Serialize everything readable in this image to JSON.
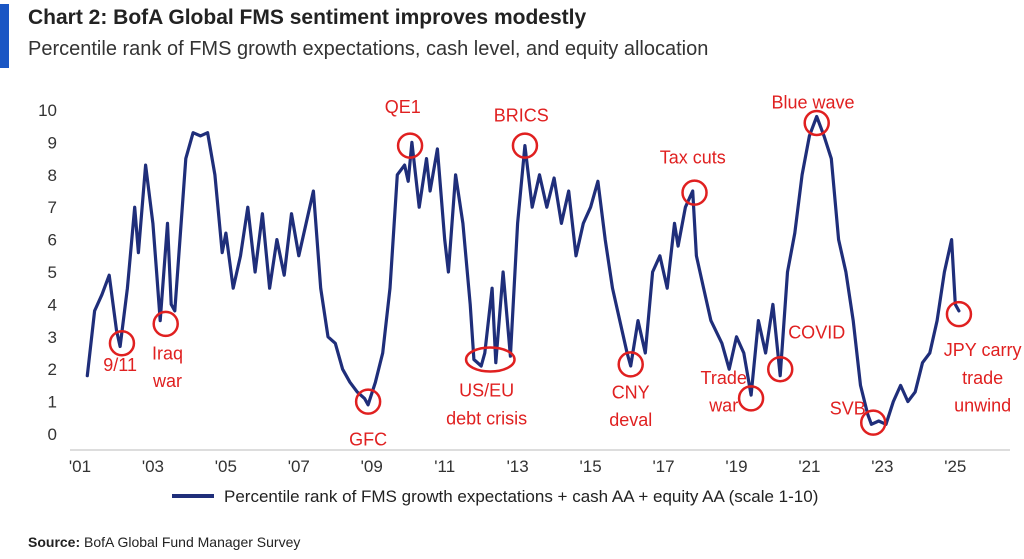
{
  "header": {
    "title": "Chart 2: BofA Global FMS sentiment improves modestly",
    "subtitle": "Percentile rank of FMS growth expectations, cash level, and equity allocation"
  },
  "source": {
    "label": "Source:",
    "text": "BofA Global Fund Manager Survey"
  },
  "colors": {
    "line": "#1f2e7a",
    "annotation": "#e02020",
    "accent": "#1a56c4"
  },
  "chart_data": {
    "type": "line",
    "xlim": [
      2001,
      2026.5
    ],
    "ylim": [
      0,
      10
    ],
    "x_ticks": [
      {
        "value": 2001,
        "label": "'01"
      },
      {
        "value": 2003,
        "label": "'03"
      },
      {
        "value": 2005,
        "label": "'05"
      },
      {
        "value": 2007,
        "label": "'07"
      },
      {
        "value": 2009,
        "label": "'09"
      },
      {
        "value": 2011,
        "label": "'11"
      },
      {
        "value": 2013,
        "label": "'13"
      },
      {
        "value": 2015,
        "label": "'15"
      },
      {
        "value": 2017,
        "label": "'17"
      },
      {
        "value": 2019,
        "label": "'19"
      },
      {
        "value": 2021,
        "label": "'21"
      },
      {
        "value": 2023,
        "label": "'23"
      },
      {
        "value": 2025,
        "label": "'25"
      }
    ],
    "y_ticks": [
      0,
      1,
      2,
      3,
      4,
      5,
      6,
      7,
      8,
      9,
      10
    ],
    "grid": false,
    "legend_position": "bottom",
    "series": [
      {
        "name": "Percentile rank of FMS growth expectations + cash AA + equity AA (scale 1-10)",
        "points": [
          [
            2001.2,
            1.8
          ],
          [
            2001.4,
            3.8
          ],
          [
            2001.6,
            4.3
          ],
          [
            2001.8,
            4.9
          ],
          [
            2002.0,
            3.2
          ],
          [
            2002.1,
            2.7
          ],
          [
            2002.3,
            4.5
          ],
          [
            2002.5,
            7.0
          ],
          [
            2002.6,
            5.6
          ],
          [
            2002.8,
            8.3
          ],
          [
            2003.0,
            6.5
          ],
          [
            2003.1,
            5.0
          ],
          [
            2003.2,
            3.5
          ],
          [
            2003.4,
            6.5
          ],
          [
            2003.5,
            4.0
          ],
          [
            2003.6,
            3.8
          ],
          [
            2003.9,
            8.5
          ],
          [
            2004.1,
            9.3
          ],
          [
            2004.3,
            9.2
          ],
          [
            2004.5,
            9.3
          ],
          [
            2004.7,
            8.0
          ],
          [
            2004.9,
            5.6
          ],
          [
            2005.0,
            6.2
          ],
          [
            2005.2,
            4.5
          ],
          [
            2005.4,
            5.5
          ],
          [
            2005.6,
            7.0
          ],
          [
            2005.8,
            5.0
          ],
          [
            2006.0,
            6.8
          ],
          [
            2006.2,
            4.5
          ],
          [
            2006.4,
            6.0
          ],
          [
            2006.6,
            4.9
          ],
          [
            2006.8,
            6.8
          ],
          [
            2007.0,
            5.5
          ],
          [
            2007.2,
            6.5
          ],
          [
            2007.4,
            7.5
          ],
          [
            2007.6,
            4.5
          ],
          [
            2007.8,
            3.0
          ],
          [
            2008.0,
            2.8
          ],
          [
            2008.2,
            2.0
          ],
          [
            2008.4,
            1.6
          ],
          [
            2008.6,
            1.3
          ],
          [
            2008.8,
            1.1
          ],
          [
            2008.9,
            0.9
          ],
          [
            2009.1,
            1.6
          ],
          [
            2009.3,
            2.5
          ],
          [
            2009.5,
            4.5
          ],
          [
            2009.7,
            8.0
          ],
          [
            2009.9,
            8.3
          ],
          [
            2010.0,
            7.8
          ],
          [
            2010.1,
            9.0
          ],
          [
            2010.3,
            7.0
          ],
          [
            2010.5,
            8.5
          ],
          [
            2010.6,
            7.5
          ],
          [
            2010.8,
            8.8
          ],
          [
            2011.0,
            6.0
          ],
          [
            2011.1,
            5.0
          ],
          [
            2011.3,
            8.0
          ],
          [
            2011.5,
            6.5
          ],
          [
            2011.7,
            4.0
          ],
          [
            2011.8,
            2.3
          ],
          [
            2012.0,
            2.1
          ],
          [
            2012.1,
            2.5
          ],
          [
            2012.3,
            4.5
          ],
          [
            2012.4,
            2.2
          ],
          [
            2012.6,
            5.0
          ],
          [
            2012.8,
            2.4
          ],
          [
            2013.0,
            6.5
          ],
          [
            2013.2,
            8.9
          ],
          [
            2013.4,
            7.0
          ],
          [
            2013.6,
            8.0
          ],
          [
            2013.8,
            7.0
          ],
          [
            2014.0,
            7.9
          ],
          [
            2014.2,
            6.5
          ],
          [
            2014.4,
            7.5
          ],
          [
            2014.6,
            5.5
          ],
          [
            2014.8,
            6.5
          ],
          [
            2015.0,
            7.0
          ],
          [
            2015.2,
            7.8
          ],
          [
            2015.4,
            6.0
          ],
          [
            2015.6,
            4.5
          ],
          [
            2015.8,
            3.5
          ],
          [
            2016.0,
            2.5
          ],
          [
            2016.1,
            2.1
          ],
          [
            2016.3,
            3.5
          ],
          [
            2016.5,
            2.5
          ],
          [
            2016.7,
            5.0
          ],
          [
            2016.9,
            5.5
          ],
          [
            2017.1,
            4.5
          ],
          [
            2017.3,
            6.5
          ],
          [
            2017.4,
            5.8
          ],
          [
            2017.6,
            7.0
          ],
          [
            2017.8,
            7.5
          ],
          [
            2017.9,
            5.5
          ],
          [
            2018.1,
            4.5
          ],
          [
            2018.3,
            3.5
          ],
          [
            2018.6,
            2.8
          ],
          [
            2018.8,
            2.0
          ],
          [
            2019.0,
            3.0
          ],
          [
            2019.2,
            2.5
          ],
          [
            2019.4,
            1.2
          ],
          [
            2019.6,
            3.5
          ],
          [
            2019.8,
            2.5
          ],
          [
            2020.0,
            4.0
          ],
          [
            2020.2,
            1.8
          ],
          [
            2020.4,
            5.0
          ],
          [
            2020.6,
            6.2
          ],
          [
            2020.8,
            8.0
          ],
          [
            2021.0,
            9.2
          ],
          [
            2021.2,
            9.8
          ],
          [
            2021.4,
            9.2
          ],
          [
            2021.6,
            8.5
          ],
          [
            2021.8,
            6.0
          ],
          [
            2022.0,
            5.0
          ],
          [
            2022.2,
            3.5
          ],
          [
            2022.4,
            1.5
          ],
          [
            2022.6,
            0.6
          ],
          [
            2022.7,
            0.3
          ],
          [
            2022.9,
            0.4
          ],
          [
            2023.1,
            0.3
          ],
          [
            2023.3,
            1.0
          ],
          [
            2023.5,
            1.5
          ],
          [
            2023.7,
            1.0
          ],
          [
            2023.9,
            1.3
          ],
          [
            2024.1,
            2.2
          ],
          [
            2024.3,
            2.5
          ],
          [
            2024.5,
            3.5
          ],
          [
            2024.7,
            5.0
          ],
          [
            2024.9,
            6.0
          ],
          [
            2025.0,
            4.0
          ],
          [
            2025.1,
            3.8
          ]
        ]
      }
    ],
    "annotations": [
      {
        "text": "9/11",
        "x": 2002.15,
        "y": 2.8,
        "label_x": 2002.1,
        "label_y": 1.95,
        "anchor": "middle"
      },
      {
        "text": "Iraq",
        "x": 2003.35,
        "y": 3.4,
        "label_x": 2003.4,
        "label_y": 2.3,
        "anchor": "middle"
      },
      {
        "text": "war",
        "x": null,
        "y": null,
        "label_x": 2003.4,
        "label_y": 1.45,
        "anchor": "middle"
      },
      {
        "text": "GFC",
        "x": 2008.9,
        "y": 1.0,
        "label_x": 2008.9,
        "label_y": -0.35,
        "anchor": "middle"
      },
      {
        "text": "QE1",
        "x": 2010.05,
        "y": 8.9,
        "label_x": 2009.85,
        "label_y": 9.9,
        "anchor": "middle"
      },
      {
        "text": "US/EU",
        "x": null,
        "y": null,
        "label_x": 2012.15,
        "label_y": 1.15,
        "anchor": "middle"
      },
      {
        "text": "debt crisis",
        "x": null,
        "y": null,
        "label_x": 2012.15,
        "label_y": 0.3,
        "anchor": "middle"
      },
      {
        "text": "BRICS",
        "x": 2013.2,
        "y": 8.9,
        "label_x": 2013.1,
        "label_y": 9.65,
        "anchor": "middle"
      },
      {
        "text": "Tax cuts",
        "x": 2017.85,
        "y": 7.45,
        "label_x": 2017.8,
        "label_y": 8.35,
        "anchor": "middle"
      },
      {
        "text": "CNY",
        "x": 2016.1,
        "y": 2.15,
        "label_x": 2016.1,
        "label_y": 1.1,
        "anchor": "middle"
      },
      {
        "text": "deval",
        "x": null,
        "y": null,
        "label_x": 2016.1,
        "label_y": 0.25,
        "anchor": "middle"
      },
      {
        "text": "Trade",
        "x": 2019.4,
        "y": 1.1,
        "label_x": 2018.65,
        "label_y": 1.55,
        "anchor": "middle"
      },
      {
        "text": "war",
        "x": null,
        "y": null,
        "label_x": 2018.65,
        "label_y": 0.7,
        "anchor": "middle"
      },
      {
        "text": "COVID",
        "x": 2020.2,
        "y": 2.0,
        "label_x": 2021.2,
        "label_y": 2.95,
        "anchor": "middle"
      },
      {
        "text": "Blue wave",
        "x": 2021.2,
        "y": 9.6,
        "label_x": 2021.1,
        "label_y": 10.05,
        "anchor": "middle"
      },
      {
        "text": "SVB",
        "x": 2022.75,
        "y": 0.35,
        "label_x": 2022.05,
        "label_y": 0.6,
        "anchor": "middle"
      },
      {
        "text": "JPY carry",
        "x": 2025.1,
        "y": 3.7,
        "label_x": 2025.75,
        "label_y": 2.4,
        "anchor": "middle"
      },
      {
        "text": "trade",
        "x": null,
        "y": null,
        "label_x": 2025.75,
        "label_y": 1.55,
        "anchor": "middle"
      },
      {
        "text": "unwind",
        "x": null,
        "y": null,
        "label_x": 2025.75,
        "label_y": 0.7,
        "anchor": "middle"
      }
    ],
    "crisis_ellipse": {
      "x_from": 2011.75,
      "x_to": 2012.75,
      "y": 2.3
    }
  }
}
